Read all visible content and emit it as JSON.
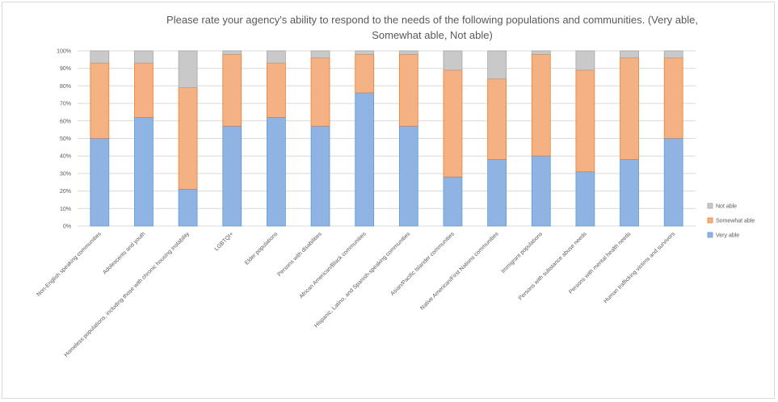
{
  "chart_data": {
    "type": "bar",
    "stacked": true,
    "title_lines": [
      "Please rate your agency's ability to respond to the needs of the following populations and communities. (Very able,",
      "Somewhat able, Not able)"
    ],
    "categories": [
      "Non-English speaking communities",
      "Adolescents and youth",
      "Homeless populations, including those with chronic housing instability",
      "LGBTQI+",
      "Elder populations",
      "Persons with disabilities",
      "African American/Black communities",
      "Hispanic, Latino, and Spanish-speaking communities",
      "Asian/Pacific Islander communities",
      "Native American/First Nations communities",
      "Immigrant populations",
      "Persons with substance abuse needs",
      "Persons with mental health needs",
      "Human trafficking victims and survivors"
    ],
    "series": [
      {
        "name": "Very able",
        "color": "#8fb4e3",
        "values": [
          50,
          62,
          21,
          57,
          62,
          57,
          76,
          57,
          28,
          38,
          40,
          31,
          38,
          50
        ]
      },
      {
        "name": "Somewhat able",
        "color": "#f4b183",
        "values": [
          43,
          31,
          58,
          41,
          31,
          39,
          22,
          41,
          61,
          46,
          58,
          58,
          58,
          46
        ]
      },
      {
        "name": "Not able",
        "color": "#c9c9c9",
        "values": [
          7,
          7,
          21,
          2,
          7,
          4,
          2,
          2,
          11,
          16,
          2,
          11,
          4,
          4
        ]
      }
    ],
    "y_ticks": [
      "0%",
      "10%",
      "20%",
      "30%",
      "40%",
      "50%",
      "60%",
      "70%",
      "80%",
      "90%",
      "100%"
    ],
    "ylim": [
      0,
      100
    ],
    "grid": true,
    "legend_position": "right",
    "legend_order": [
      "Not able",
      "Somewhat able",
      "Very able"
    ],
    "bar_outlines": {
      "Very able": "#5b9bd5",
      "Somewhat able": "#ed7d31",
      "Not able": "#a5a5a5"
    },
    "colors": {
      "gridline": "#d9d9d9",
      "text": "#595959"
    }
  }
}
